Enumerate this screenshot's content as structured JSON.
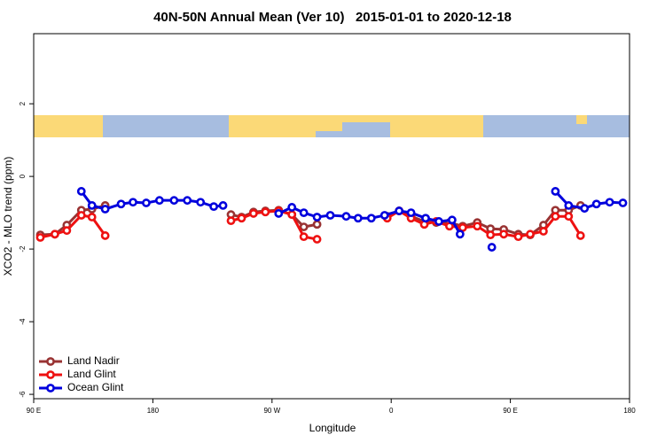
{
  "chart_data": {
    "type": "line",
    "title": "40N-50N Annual Mean (Ver 10)   2015-01-01 to 2020-12-18",
    "x_label": "Longitude",
    "y_label": "XCO2 - MLO trend (ppm)",
    "xlim": [
      90,
      540
    ],
    "xticks": [
      {
        "value": 90,
        "label": "90 E"
      },
      180,
      {
        "value": 270,
        "label": "90 W"
      },
      {
        "value": 360,
        "label": "0"
      },
      {
        "value": 450,
        "label": "90 E"
      },
      {
        "value": 540,
        "label": "180"
      }
    ],
    "ylim": [
      -6.12,
      3.93
    ],
    "yticks": [
      2,
      0,
      -2,
      -4,
      -6
    ],
    "legend": "bottom-left",
    "series": [
      {
        "name": "Land Nadir",
        "color": "#993333",
        "x": [
          95,
          106,
          115,
          126,
          134,
          144,
          null,
          239,
          247,
          256,
          265,
          275,
          285,
          294,
          304,
          null,
          357,
          366,
          375,
          385,
          394,
          404,
          414,
          425,
          435,
          445,
          456,
          465,
          475,
          484,
          494,
          503
        ],
        "values": [
          -1.61,
          -1.59,
          -1.34,
          -0.93,
          -0.9,
          -0.8,
          null,
          -1.05,
          -1.12,
          -0.98,
          -0.95,
          -0.93,
          -1.05,
          -1.39,
          -1.32,
          null,
          -1.1,
          -0.95,
          -1.1,
          -1.24,
          -1.27,
          -1.27,
          -1.37,
          -1.27,
          -1.44,
          -1.46,
          -1.59,
          -1.61,
          -1.34,
          -0.93,
          -0.93,
          -0.8
        ]
      },
      {
        "name": "Land Glint",
        "color": "#ee1111",
        "x": [
          95,
          106,
          115,
          126,
          134,
          144,
          null,
          239,
          247,
          256,
          265,
          275,
          285,
          294,
          304,
          null,
          357,
          366,
          375,
          385,
          394,
          404,
          414,
          425,
          435,
          445,
          456,
          465,
          475,
          484,
          494,
          503
        ],
        "values": [
          -1.68,
          -1.59,
          -1.49,
          -1.07,
          -1.12,
          -1.63,
          null,
          -1.22,
          -1.15,
          -1.02,
          -0.98,
          -0.95,
          -1.05,
          -1.66,
          -1.73,
          null,
          -1.15,
          -0.95,
          -1.15,
          -1.32,
          -1.24,
          -1.37,
          -1.41,
          -1.37,
          -1.61,
          -1.59,
          -1.66,
          -1.59,
          -1.51,
          -1.1,
          -1.1,
          -1.63
        ]
      },
      {
        "name": "Ocean Glint",
        "color": "#0000dd",
        "x": [
          126,
          134,
          144,
          156,
          165,
          175,
          185,
          196,
          206,
          216,
          226,
          233,
          null,
          275,
          285,
          294,
          304,
          314,
          326,
          335,
          345,
          355,
          366,
          375,
          386,
          396,
          406,
          412,
          null,
          436,
          null,
          484,
          494,
          506,
          515,
          525,
          535
        ],
        "values": [
          -0.41,
          -0.8,
          -0.9,
          -0.76,
          -0.71,
          -0.73,
          -0.66,
          -0.66,
          -0.66,
          -0.71,
          -0.83,
          -0.8,
          null,
          -1.02,
          -0.85,
          -1,
          -1.12,
          -1.07,
          -1.1,
          -1.15,
          -1.15,
          -1.07,
          -0.95,
          -1,
          -1.15,
          -1.24,
          -1.2,
          -1.59,
          null,
          -1.95,
          null,
          -0.41,
          -0.8,
          -0.88,
          -0.76,
          -0.71,
          -0.73
        ]
      }
    ]
  }
}
